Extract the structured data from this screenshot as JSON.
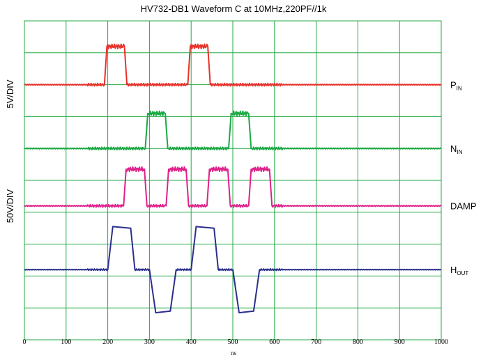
{
  "chart_data": {
    "type": "line",
    "title": "HV732-DB1 Waveform C at 10MHz,220PF//1k",
    "xlabel": "ns",
    "xlim": [
      0,
      1000
    ],
    "x_ticks": [
      0,
      100,
      200,
      300,
      400,
      500,
      600,
      700,
      800,
      900,
      1000
    ],
    "y_scale_labels": [
      {
        "text": "5V/DIV",
        "applies_to": "logic"
      },
      {
        "text": "50V/DIV",
        "applies_to": "output"
      }
    ],
    "grid": true,
    "grid_color": "#22aa44",
    "series": [
      {
        "name_main": "P",
        "name_sub": "IN",
        "color": "#e8312a",
        "baseline_div": 2,
        "high_div": 1.2,
        "points": [
          [
            0,
            0
          ],
          [
            192,
            0
          ],
          [
            198,
            1.2
          ],
          [
            240,
            1.2
          ],
          [
            246,
            0
          ],
          [
            392,
            0
          ],
          [
            398,
            1.2
          ],
          [
            440,
            1.2
          ],
          [
            446,
            0
          ],
          [
            1000,
            0
          ]
        ]
      },
      {
        "name_main": "N",
        "name_sub": "IN",
        "color": "#1aa843",
        "baseline_div": 4,
        "high_div": 1.1,
        "points": [
          [
            0,
            0
          ],
          [
            290,
            0
          ],
          [
            296,
            1.1
          ],
          [
            338,
            1.1
          ],
          [
            344,
            0
          ],
          [
            490,
            0
          ],
          [
            496,
            1.1
          ],
          [
            538,
            1.1
          ],
          [
            544,
            0
          ],
          [
            1000,
            0
          ]
        ]
      },
      {
        "name_main": "DAMP",
        "name_sub": "",
        "color": "#e0208a",
        "baseline_div": 5.8,
        "high_div": 1.15,
        "points": [
          [
            0,
            0
          ],
          [
            238,
            0
          ],
          [
            244,
            1.15
          ],
          [
            288,
            1.15
          ],
          [
            294,
            0
          ],
          [
            340,
            0
          ],
          [
            346,
            1.15
          ],
          [
            388,
            1.15
          ],
          [
            394,
            0
          ],
          [
            438,
            0
          ],
          [
            444,
            1.15
          ],
          [
            488,
            1.15
          ],
          [
            494,
            0
          ],
          [
            538,
            0
          ],
          [
            544,
            1.15
          ],
          [
            588,
            1.15
          ],
          [
            594,
            0
          ],
          [
            1000,
            0
          ]
        ]
      },
      {
        "name_main": "H",
        "name_sub": "OUT",
        "color": "#2a2f8c",
        "baseline_div": 7.8,
        "high_div": 1.35,
        "points": [
          [
            0,
            0
          ],
          [
            200,
            0
          ],
          [
            212,
            1.35
          ],
          [
            255,
            1.3
          ],
          [
            265,
            0
          ],
          [
            300,
            0
          ],
          [
            315,
            -1.35
          ],
          [
            350,
            -1.3
          ],
          [
            364,
            0
          ],
          [
            400,
            0
          ],
          [
            412,
            1.35
          ],
          [
            455,
            1.3
          ],
          [
            465,
            0
          ],
          [
            500,
            0
          ],
          [
            515,
            -1.35
          ],
          [
            550,
            -1.3
          ],
          [
            564,
            0
          ],
          [
            1000,
            0
          ]
        ]
      }
    ]
  }
}
